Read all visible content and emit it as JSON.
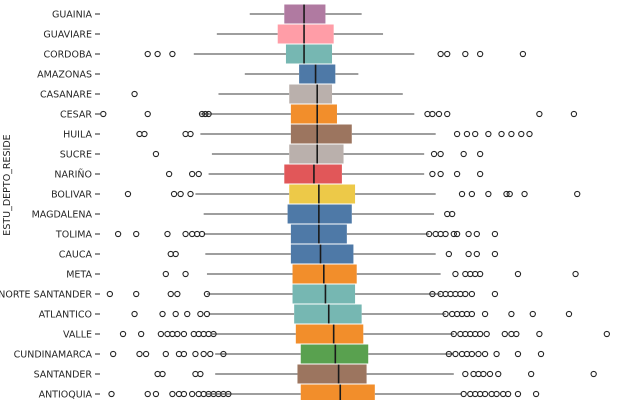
{
  "chart_data": {
    "type": "boxplot",
    "orientation": "horizontal",
    "ylabel": "ESTU_DEPTO_RESIDE",
    "x_range": [
      -4,
      312
    ],
    "grid": false,
    "categories": [
      {
        "name": "GUAINIA",
        "q1": 108,
        "median": 120,
        "q3": 133,
        "wlo": 87,
        "whi": 155,
        "outliers": [],
        "color": "#b07aa1"
      },
      {
        "name": "GUAVIARE",
        "q1": 104,
        "median": 120,
        "q3": 138,
        "wlo": 67,
        "whi": 168,
        "outliers": [],
        "color": "#ff9da7"
      },
      {
        "name": "CORDOBA",
        "q1": 109,
        "median": 120,
        "q3": 137,
        "wlo": 53,
        "whi": 187,
        "outliers": [
          25,
          31,
          40,
          203,
          207,
          218,
          227,
          253
        ],
        "color": "#76b7b2"
      },
      {
        "name": "AMAZONAS",
        "q1": 117,
        "median": 127,
        "q3": 139,
        "wlo": 84,
        "whi": 153,
        "outliers": [],
        "color": "#4e79a7"
      },
      {
        "name": "CASANARE",
        "q1": 111,
        "median": 128,
        "q3": 137,
        "wlo": 68,
        "whi": 180,
        "outliers": [
          17
        ],
        "color": "#bab0ac"
      },
      {
        "name": "CESAR",
        "q1": 112,
        "median": 128,
        "q3": 140,
        "wlo": 57,
        "whi": 187,
        "outliers": [
          -2,
          25,
          58,
          60,
          62,
          195,
          198,
          202,
          207,
          263,
          284
        ],
        "color": "#f28e2b"
      },
      {
        "name": "HUILA",
        "q1": 112,
        "median": 128,
        "q3": 149,
        "wlo": 57,
        "whi": 200,
        "outliers": [
          20,
          23,
          48,
          51,
          213,
          219,
          224,
          232,
          240,
          246,
          252,
          257
        ],
        "color": "#9c755f"
      },
      {
        "name": "SUCRE",
        "q1": 111,
        "median": 128,
        "q3": 144,
        "wlo": 64,
        "whi": 193,
        "outliers": [
          30,
          199,
          203,
          217,
          227
        ],
        "color": "#bab0ac"
      },
      {
        "name": "NARIÑO",
        "q1": 108,
        "median": 126,
        "q3": 143,
        "wlo": 62,
        "whi": 193,
        "outliers": [
          38,
          52,
          56,
          198,
          203,
          213,
          227
        ],
        "color": "#e15759"
      },
      {
        "name": "BOLIVAR",
        "q1": 111,
        "median": 129,
        "q3": 151,
        "wlo": 54,
        "whi": 200,
        "outliers": [
          13,
          41,
          45,
          51,
          216,
          222,
          232,
          243,
          245,
          254,
          286
        ],
        "color": "#edc948"
      },
      {
        "name": "MAGDALENA",
        "q1": 110,
        "median": 129,
        "q3": 149,
        "wlo": 59,
        "whi": 199,
        "outliers": [
          207,
          210
        ],
        "color": "#4e79a7"
      },
      {
        "name": "TOLIMA",
        "q1": 112,
        "median": 129,
        "q3": 146,
        "wlo": 59,
        "whi": 196,
        "outliers": [
          7,
          18,
          37,
          48,
          52,
          55,
          58,
          196,
          200,
          203,
          206,
          211,
          213,
          220,
          225,
          236
        ],
        "color": "#4e79a7"
      },
      {
        "name": "CAUCA",
        "q1": 112,
        "median": 130,
        "q3": 150,
        "wlo": 60,
        "whi": 200,
        "outliers": [
          39,
          42,
          208,
          220,
          225,
          236
        ],
        "color": "#4e79a7"
      },
      {
        "name": "META",
        "q1": 113,
        "median": 132,
        "q3": 152,
        "wlo": 61,
        "whi": 203,
        "outliers": [
          36,
          48,
          212,
          218,
          221,
          224,
          227,
          250,
          285
        ],
        "color": "#f28e2b"
      },
      {
        "name": "NORTE SANTANDER",
        "q1": 113,
        "median": 133,
        "q3": 151,
        "wlo": 61,
        "whi": 203,
        "outliers": [
          2,
          18,
          39,
          43,
          61,
          198,
          203,
          206,
          209,
          212,
          215,
          218,
          222,
          236
        ],
        "color": "#76b7b2"
      },
      {
        "name": "ATLANTICO",
        "q1": 114,
        "median": 135,
        "q3": 155,
        "wlo": 62,
        "whi": 206,
        "outliers": [
          17,
          34,
          42,
          49,
          57,
          61,
          206,
          210,
          213,
          216,
          219,
          222,
          230,
          246,
          259,
          281
        ],
        "color": "#76b7b2"
      },
      {
        "name": "VALLE",
        "q1": 115,
        "median": 138,
        "q3": 156,
        "wlo": 64,
        "whi": 211,
        "outliers": [
          10,
          21,
          33,
          37,
          40,
          43,
          47,
          53,
          56,
          59,
          62,
          65,
          211,
          215,
          218,
          221,
          224,
          227,
          231,
          242,
          246,
          249,
          263,
          304
        ],
        "color": "#f28e2b"
      },
      {
        "name": "CUNDINAMARCA",
        "q1": 118,
        "median": 139,
        "q3": 159,
        "wlo": 66,
        "whi": 211,
        "outliers": [
          4,
          20,
          24,
          36,
          44,
          47,
          54,
          59,
          63,
          71,
          208,
          212,
          216,
          219,
          222,
          226,
          230,
          237,
          250,
          264
        ],
        "color": "#59a14f"
      },
      {
        "name": "SANTANDER",
        "q1": 116,
        "median": 141,
        "q3": 158,
        "wlo": 66,
        "whi": 211,
        "outliers": [
          31,
          34,
          54,
          57,
          218,
          223,
          226,
          229,
          233,
          238,
          258,
          296
        ],
        "color": "#9c755f"
      },
      {
        "name": "ANTIOQUIA",
        "q1": 118,
        "median": 142,
        "q3": 163,
        "wlo": 60,
        "whi": 216,
        "outliers": [
          3,
          25,
          30,
          40,
          44,
          47,
          52,
          56,
          59,
          62,
          65,
          68,
          71,
          74,
          217,
          221,
          224,
          227,
          230,
          234,
          237,
          241,
          244,
          250,
          261
        ],
        "color": "#f28e2b"
      }
    ]
  }
}
